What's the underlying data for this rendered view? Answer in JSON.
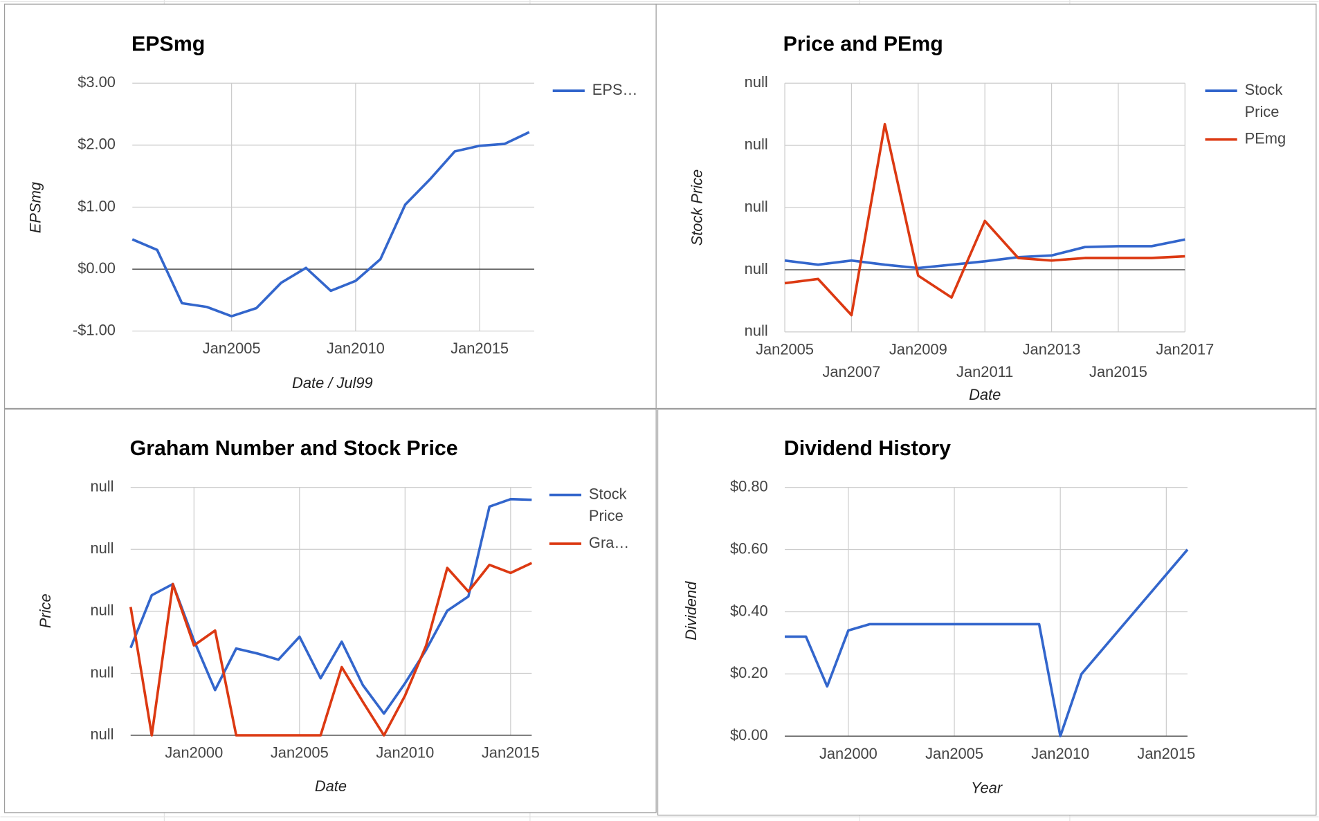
{
  "chart_data": [
    {
      "type": "line",
      "title": "EPSmg",
      "x_label": "Date / Jul99",
      "y_label": "EPSmg",
      "x": [
        2001,
        2002,
        2003,
        2004,
        2005,
        2006,
        2007,
        2008,
        2009,
        2010,
        2011,
        2012,
        2013,
        2014,
        2015,
        2016,
        2017
      ],
      "series": [
        {
          "name": "EPS…",
          "color": "#3366cc",
          "values": [
            0.48,
            0.31,
            -0.55,
            -0.61,
            -0.76,
            -0.63,
            -0.22,
            0.02,
            -0.35,
            -0.19,
            0.16,
            1.04,
            1.45,
            1.9,
            1.99,
            2.02,
            2.21
          ]
        }
      ],
      "xlim": [
        2001,
        2017.2
      ],
      "xticks": [
        {
          "value": 2005,
          "label": "Jan2005"
        },
        {
          "value": 2010,
          "label": "Jan2010"
        },
        {
          "value": 2015,
          "label": "Jan2015"
        }
      ],
      "ylim": [
        -1,
        3
      ],
      "yticks": [
        {
          "value": -1,
          "label": "-$1.00"
        },
        {
          "value": 0,
          "label": "$0.00"
        },
        {
          "value": 1,
          "label": "$1.00"
        },
        {
          "value": 2,
          "label": "$2.00"
        },
        {
          "value": 3,
          "label": "$3.00"
        }
      ],
      "grid": true,
      "legend": "right"
    },
    {
      "type": "line",
      "title": "Price and PEmg",
      "x_label": "Date",
      "y_label": "Stock Price",
      "x": [
        2005,
        2006,
        2007,
        2008,
        2009,
        2010,
        2011,
        2012,
        2013,
        2014,
        2015,
        2016,
        2017
      ],
      "series": [
        {
          "name": "Stock Price",
          "color": "#3366cc",
          "values": [
            2.97,
            1.62,
            2.97,
            1.62,
            0.54,
            1.62,
            2.7,
            4.05,
            4.59,
            7.3,
            7.57,
            7.57,
            9.73
          ]
        },
        {
          "name": "PEmg",
          "color": "#dc3912",
          "values": [
            -4.32,
            -2.97,
            -14.6,
            46.8,
            -1.89,
            -8.92,
            15.7,
            3.78,
            2.97,
            3.78,
            3.78,
            3.78,
            4.32
          ]
        }
      ],
      "xlim": [
        2005,
        2017
      ],
      "xticks": [
        {
          "value": 2005,
          "label": "Jan2005"
        },
        {
          "value": 2007,
          "label": "Jan2007"
        },
        {
          "value": 2009,
          "label": "Jan2009"
        },
        {
          "value": 2011,
          "label": "Jan2011"
        },
        {
          "value": 2013,
          "label": "Jan2013"
        },
        {
          "value": 2015,
          "label": "Jan2015"
        },
        {
          "value": 2017,
          "label": "Jan2017"
        }
      ],
      "ylim": [
        -20,
        60
      ],
      "yticks": [
        {
          "value": -20,
          "label": "null"
        },
        {
          "value": 0,
          "label": "null"
        },
        {
          "value": 20,
          "label": "null"
        },
        {
          "value": 40,
          "label": "null"
        },
        {
          "value": 60,
          "label": "null"
        }
      ],
      "grid": true,
      "legend": "right"
    },
    {
      "type": "line",
      "title": "Graham Number and Stock Price",
      "x_label": "Date",
      "y_label": "Price",
      "x": [
        1997,
        1998,
        1999,
        2000,
        2001,
        2002,
        2003,
        2004,
        2005,
        2006,
        2007,
        2008,
        2009,
        2010,
        2011,
        2012,
        2013,
        2014,
        2015,
        2016
      ],
      "series": [
        {
          "name": "Stock Price",
          "color": "#3366cc",
          "values": [
            14.1,
            22.6,
            24.4,
            15.3,
            7.3,
            14,
            13.2,
            12.2,
            15.9,
            9.2,
            15.1,
            8.1,
            3.5,
            8.4,
            13.8,
            20.1,
            22.4,
            36.9,
            38.1,
            38
          ]
        },
        {
          "name": "Gra…",
          "color": "#dc3912",
          "values": [
            20.7,
            0,
            24.4,
            14.5,
            16.9,
            0,
            0,
            0,
            0,
            0,
            11,
            5.4,
            0,
            6.4,
            14.5,
            27,
            23.2,
            27.5,
            26.2,
            27.8
          ]
        }
      ],
      "xlim": [
        1997,
        2016
      ],
      "xticks": [
        {
          "value": 2000,
          "label": "Jan2000"
        },
        {
          "value": 2005,
          "label": "Jan2005"
        },
        {
          "value": 2010,
          "label": "Jan2010"
        },
        {
          "value": 2015,
          "label": "Jan2015"
        }
      ],
      "ylim": [
        0,
        40
      ],
      "yticks": [
        {
          "value": 0,
          "label": "null"
        },
        {
          "value": 10,
          "label": "null"
        },
        {
          "value": 20,
          "label": "null"
        },
        {
          "value": 30,
          "label": "null"
        },
        {
          "value": 40,
          "label": "null"
        }
      ],
      "grid": true,
      "legend": "right"
    },
    {
      "type": "line",
      "title": "Dividend History",
      "x_label": "Year",
      "y_label": "Dividend",
      "x": [
        1997,
        1998,
        1999,
        2000,
        2001,
        2002,
        2003,
        2004,
        2005,
        2006,
        2007,
        2008,
        2009,
        2010,
        2011,
        2012,
        2013,
        2014,
        2015,
        2016
      ],
      "series": [
        {
          "color": "#3366cc",
          "values": [
            0.32,
            0.32,
            0.16,
            0.34,
            0.36,
            0.36,
            0.36,
            0.36,
            0.36,
            0.36,
            0.36,
            0.36,
            0.36,
            0,
            0.2,
            0.28,
            0.36,
            0.44,
            0.52,
            0.6
          ]
        }
      ],
      "xlim": [
        1997,
        2016
      ],
      "xticks": [
        {
          "value": 2000,
          "label": "Jan2000"
        },
        {
          "value": 2005,
          "label": "Jan2005"
        },
        {
          "value": 2010,
          "label": "Jan2010"
        },
        {
          "value": 2015,
          "label": "Jan2015"
        }
      ],
      "ylim": [
        0,
        0.8
      ],
      "yticks": [
        {
          "value": 0,
          "label": "$0.00"
        },
        {
          "value": 0.2,
          "label": "$0.20"
        },
        {
          "value": 0.4,
          "label": "$0.40"
        },
        {
          "value": 0.6,
          "label": "$0.60"
        },
        {
          "value": 0.8,
          "label": "$0.80"
        }
      ],
      "grid": true
    }
  ]
}
